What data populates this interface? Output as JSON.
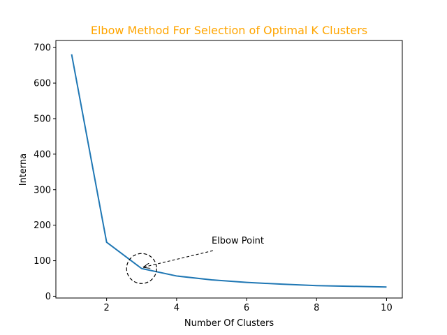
{
  "colors": {
    "title": "#ffa500",
    "line": "#1f77b4",
    "axes": "#000000",
    "background": "#ffffff"
  },
  "chart_data": {
    "type": "line",
    "title": "Elbow Method For Selection of Optimal K Clusters",
    "xlabel": "Number Of Clusters",
    "ylabel": "Interna",
    "xlim": [
      0.55,
      10.45
    ],
    "ylim": [
      -5,
      720
    ],
    "x_ticks": [
      2,
      4,
      6,
      8,
      10
    ],
    "y_ticks": [
      0,
      100,
      200,
      300,
      400,
      500,
      600,
      700
    ],
    "grid": false,
    "series": [
      {
        "x": [
          1,
          2,
          3,
          4,
          5,
          6,
          7,
          8,
          9,
          10
        ],
        "y": [
          681,
          152,
          78,
          57,
          46,
          39,
          34,
          30,
          28,
          26
        ]
      }
    ],
    "annotation": {
      "text": "Elbow Point",
      "point": [
        3,
        78
      ],
      "text_position": [
        5,
        148
      ],
      "marker": "dashed-circle",
      "arrow": "dashed"
    }
  }
}
